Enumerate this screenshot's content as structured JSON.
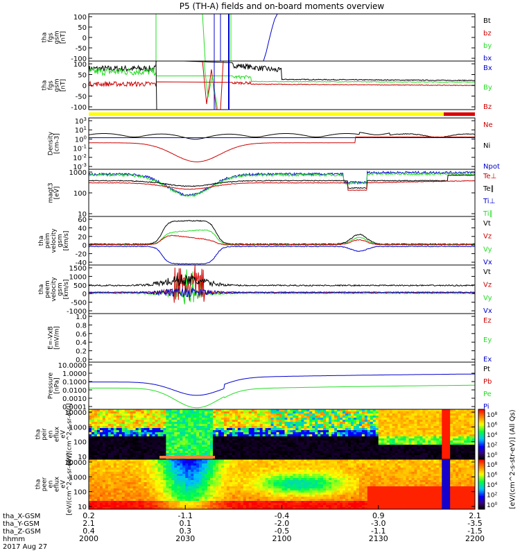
{
  "title": "P5 (TH-A) fields and on-board moments overview",
  "date_label": "2017 Aug 27",
  "x_axis": {
    "row_labels": [
      "tha_X-GSM",
      "tha_Y-GSM",
      "tha_Z-GSM",
      "hhmm"
    ],
    "columns": [
      [
        "0.2",
        "2.1",
        "0.4",
        "2000"
      ],
      [
        "-1.1",
        "0.1",
        "0.3",
        "2030"
      ],
      [
        "-0.4",
        "-2.0",
        "-0.5",
        "2100"
      ],
      [
        "0.9",
        "-3.0",
        "-1.1",
        "2130"
      ],
      [
        "2.1",
        "-3.5",
        "-1.5",
        "2200"
      ]
    ]
  },
  "colors": {
    "black": "#000000",
    "red": "#cc0000",
    "green": "#22dd22",
    "blue": "#0000cc",
    "yellow": "#ffff00",
    "quality_red": "#dd0000"
  },
  "colorbar": {
    "label": "[eV/(cm^2-s-str-eV)] (All Qs)",
    "ticks_top": [
      "10^8",
      "10^6",
      "10^4",
      "10^2",
      "10^0"
    ],
    "ticks_bottom": [
      "10^8",
      "10^6",
      "10^4",
      "10^2",
      "10^0"
    ]
  },
  "chart_data": [
    {
      "id": "fgs",
      "type": "line",
      "ylabel": [
        "tha",
        "fgs",
        "gsm",
        "[nT]"
      ],
      "ylim": [
        -100,
        100
      ],
      "y_ticks": [
        "100",
        "50",
        "0",
        "-50",
        "-100"
      ],
      "legend": [
        "Bt",
        "bz",
        "by",
        "bx"
      ],
      "legend_colors": [
        "black",
        "red",
        "green",
        "blue"
      ]
    },
    {
      "id": "fgs_dsl",
      "type": "line",
      "ylabel": [
        "tha",
        "fgs",
        "gsm",
        "[nT]"
      ],
      "ylim": [
        -120,
        100
      ],
      "y_ticks": [
        "100",
        "50",
        "0",
        "-50",
        "-100"
      ],
      "legend": [
        "Bx",
        "By",
        "Bz"
      ],
      "legend_colors": [
        "blue",
        "green",
        "red"
      ]
    },
    {
      "id": "density",
      "type": "line",
      "ylabel": [
        "Density",
        "[cm-3]"
      ],
      "log": true,
      "ylim": [
        0.0001,
        1000
      ],
      "y_ticks": [
        "10^3",
        "10^1",
        "10^0",
        "10^-1",
        "10^-2",
        "10^-3"
      ],
      "legend": [
        "Ne",
        "Ni",
        "Npot"
      ],
      "legend_colors": [
        "red",
        "black",
        "blue"
      ]
    },
    {
      "id": "temperature",
      "type": "line",
      "ylabel": [
        "magt3",
        "[eV]"
      ],
      "log": true,
      "ylim": [
        2,
        5000
      ],
      "y_ticks": [
        "1000",
        "100",
        "10"
      ],
      "legend": [
        "Te⊥",
        "Te∥",
        "Ti⊥",
        "Ti∥"
      ],
      "legend_colors": [
        "red",
        "black",
        "blue",
        "green"
      ]
    },
    {
      "id": "peim_velocity",
      "type": "line",
      "ylabel": [
        "tha",
        "peim",
        "velocity",
        "gsm",
        "[km/s]"
      ],
      "ylim": [
        -40,
        60
      ],
      "y_ticks": [
        "60",
        "40",
        "20",
        "0",
        "-20",
        "-40"
      ],
      "legend": [
        "Vt",
        "Vz",
        "Vy",
        "Vx"
      ],
      "legend_colors": [
        "black",
        "red",
        "green",
        "blue"
      ]
    },
    {
      "id": "peem_velocity",
      "type": "line",
      "ylabel": [
        "tha",
        "peem",
        "velocity",
        "gsm",
        "[km/s]"
      ],
      "ylim": [
        -1500,
        1500
      ],
      "y_ticks": [
        "1500",
        "1000",
        "500",
        "0",
        "-500",
        "-1000"
      ],
      "legend": [
        "Vt",
        "Vz",
        "Vy",
        "Vx"
      ],
      "legend_colors": [
        "black",
        "red",
        "green",
        "blue"
      ]
    },
    {
      "id": "efield",
      "type": "line",
      "ylabel": [
        "E=-VxB",
        "[mV/m]"
      ],
      "ylim": [
        0,
        1
      ],
      "y_ticks": [
        "1.0",
        "0.8",
        "0.6",
        "0.4",
        "0.2",
        "0.0"
      ],
      "legend": [
        "Ez",
        "Ey",
        "Ex"
      ],
      "legend_colors": [
        "red",
        "green",
        "blue"
      ]
    },
    {
      "id": "pressure",
      "type": "line",
      "ylabel": [
        "Pressure",
        "[nPa]"
      ],
      "log": true,
      "ylim": [
        0.0001,
        100
      ],
      "y_ticks": [
        "10.0000",
        "1.0000",
        "0.1000",
        "0.0100",
        "0.0010",
        "0.0001"
      ],
      "legend": [
        "Pt",
        "Pb",
        "Pe",
        "Pi"
      ],
      "legend_colors": [
        "black",
        "red",
        "green",
        "blue"
      ]
    },
    {
      "id": "ion_spectrogram",
      "type": "heatmap",
      "ylabel": [
        "tha",
        "peir",
        "en",
        "eflux",
        "eV",
        "[eV/(cm^2-s-sr-eV)]"
      ],
      "log": true,
      "ylim": [
        5,
        30000
      ],
      "y_ticks": [
        "10000",
        "1000",
        "100",
        "10"
      ]
    },
    {
      "id": "electron_spectrogram",
      "type": "heatmap",
      "ylabel": [
        "tha",
        "peer",
        "en",
        "eflux",
        "eV",
        "[eV/(cm^2-s-sr-eV)]"
      ],
      "log": true,
      "ylim": [
        5,
        30000
      ],
      "y_ticks": [
        "10000",
        "1000",
        "100",
        "10"
      ]
    }
  ]
}
